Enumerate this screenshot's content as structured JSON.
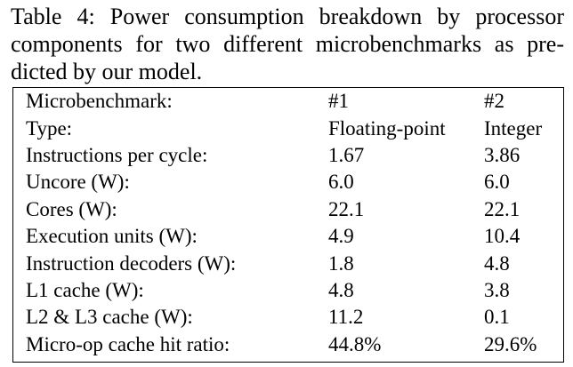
{
  "caption": {
    "line1": "Table 4: Power consumption breakdown by processor",
    "line2": "components for two different microbenchmarks as pre-",
    "line3": "dicted by our model."
  },
  "table": {
    "rows": [
      [
        "Microbenchmark:",
        "#1",
        "#2"
      ],
      [
        "Type:",
        "Floating-point",
        "Integer"
      ],
      [
        "Instructions per cycle:",
        "1.67",
        "3.86"
      ],
      [
        "Uncore (W):",
        "6.0",
        "6.0"
      ],
      [
        "Cores (W):",
        "22.1",
        "22.1"
      ],
      [
        "Execution units (W):",
        "4.9",
        "10.4"
      ],
      [
        "Instruction decoders (W):",
        "1.8",
        "4.8"
      ],
      [
        "L1 cache (W):",
        "4.8",
        "3.8"
      ],
      [
        "L2 & L3 cache (W):",
        "11.2",
        "0.1"
      ],
      [
        "Micro-op cache hit ratio:",
        "44.8%",
        "29.6%"
      ]
    ]
  }
}
